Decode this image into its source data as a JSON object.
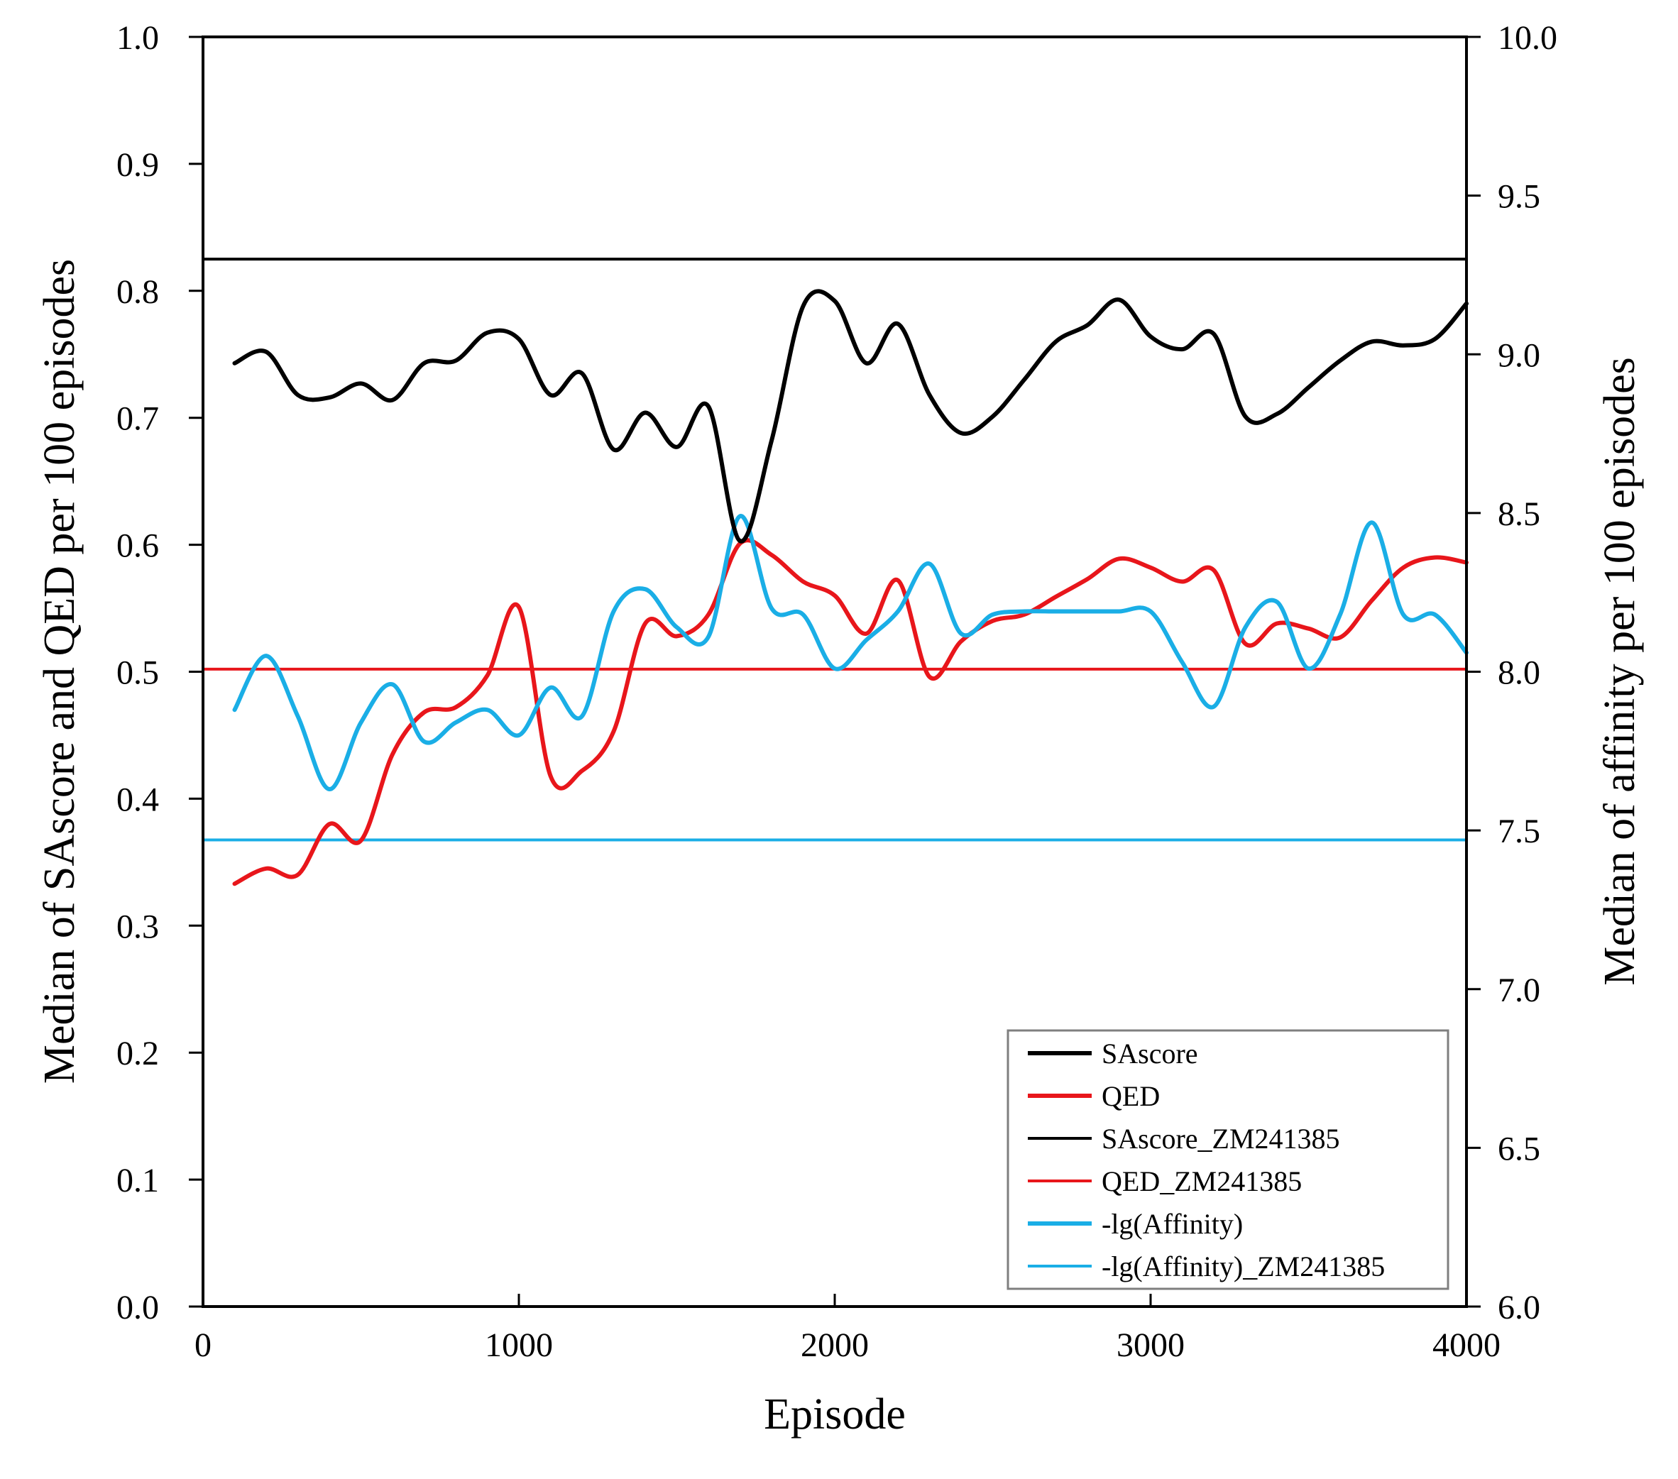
{
  "chart_data": {
    "type": "line",
    "xlabel": "Episode",
    "ylabel_left": "Median of SAscore and QED per 100 episodes",
    "ylabel_right": "Median of affinity per 100 episodes",
    "xlim": [
      0,
      4000
    ],
    "ylim_left": [
      0,
      1.0
    ],
    "ylim_right": [
      6.0,
      10.0
    ],
    "x_ticks": [
      "0",
      "1000",
      "2000",
      "3000",
      "4000"
    ],
    "y_left_ticks": [
      "0.0",
      "0.1",
      "0.2",
      "0.3",
      "0.4",
      "0.5",
      "0.6",
      "0.7",
      "0.8",
      "0.9",
      "1.0"
    ],
    "y_right_ticks": [
      "6.0",
      "6.5",
      "7.0",
      "7.5",
      "8.0",
      "8.5",
      "9.0",
      "9.5",
      "10.0"
    ],
    "grid": false,
    "legend_position": "bottom-right",
    "series": [
      {
        "name": "SAscore",
        "axis": "left",
        "color": "#000000",
        "style": "thick",
        "x": [
          100,
          200,
          300,
          400,
          500,
          600,
          700,
          800,
          900,
          1000,
          1100,
          1200,
          1300,
          1400,
          1500,
          1600,
          1700,
          1800,
          1900,
          2000,
          2100,
          2200,
          2300,
          2400,
          2500,
          2600,
          2700,
          2800,
          2900,
          3000,
          3100,
          3200,
          3300,
          3400,
          3500,
          3600,
          3700,
          3800,
          3900,
          4000
        ],
        "values": [
          0.743,
          0.752,
          0.718,
          0.716,
          0.727,
          0.714,
          0.743,
          0.745,
          0.767,
          0.762,
          0.718,
          0.735,
          0.675,
          0.704,
          0.677,
          0.709,
          0.603,
          0.682,
          0.788,
          0.792,
          0.743,
          0.774,
          0.718,
          0.688,
          0.701,
          0.73,
          0.76,
          0.773,
          0.793,
          0.764,
          0.754,
          0.766,
          0.701,
          0.703,
          0.724,
          0.745,
          0.76,
          0.757,
          0.762,
          0.79
        ]
      },
      {
        "name": "QED",
        "axis": "left",
        "color": "#e8161b",
        "style": "thick",
        "x": [
          100,
          200,
          300,
          400,
          500,
          600,
          700,
          800,
          900,
          1000,
          1100,
          1200,
          1300,
          1400,
          1500,
          1600,
          1700,
          1800,
          1900,
          2000,
          2100,
          2200,
          2300,
          2400,
          2500,
          2600,
          2700,
          2800,
          2900,
          3000,
          3100,
          3200,
          3300,
          3400,
          3500,
          3600,
          3700,
          3800,
          3900,
          4000
        ],
        "values": [
          0.333,
          0.345,
          0.34,
          0.38,
          0.367,
          0.435,
          0.468,
          0.472,
          0.497,
          0.551,
          0.418,
          0.422,
          0.453,
          0.538,
          0.528,
          0.545,
          0.601,
          0.592,
          0.571,
          0.56,
          0.53,
          0.572,
          0.496,
          0.524,
          0.54,
          0.545,
          0.559,
          0.573,
          0.589,
          0.582,
          0.571,
          0.58,
          0.522,
          0.538,
          0.534,
          0.527,
          0.556,
          0.582,
          0.59,
          0.586
        ]
      },
      {
        "name": "SAscore_ZM241385",
        "axis": "left",
        "color": "#000000",
        "style": "thin",
        "x": [
          0,
          4000
        ],
        "values": [
          0.825,
          0.825
        ]
      },
      {
        "name": "QED_ZM241385",
        "axis": "left",
        "color": "#e8161b",
        "style": "thin",
        "x": [
          0,
          4000
        ],
        "values": [
          0.502,
          0.502
        ]
      },
      {
        "name": "-lg(Affinity)",
        "axis": "right",
        "color": "#1aaee6",
        "style": "thick",
        "x": [
          100,
          200,
          300,
          400,
          500,
          600,
          700,
          800,
          900,
          1000,
          1100,
          1200,
          1300,
          1400,
          1500,
          1600,
          1700,
          1800,
          1900,
          2000,
          2100,
          2200,
          2300,
          2400,
          2500,
          2600,
          2700,
          2800,
          2900,
          3000,
          3100,
          3200,
          3300,
          3400,
          3500,
          3600,
          3700,
          3800,
          3900,
          4000
        ],
        "values": [
          7.88,
          8.05,
          7.86,
          7.63,
          7.84,
          7.96,
          7.78,
          7.84,
          7.88,
          7.8,
          7.95,
          7.86,
          8.19,
          8.26,
          8.14,
          8.11,
          8.49,
          8.2,
          8.18,
          8.01,
          8.1,
          8.19,
          8.34,
          8.12,
          8.18,
          8.19,
          8.19,
          8.19,
          8.19,
          8.19,
          8.03,
          7.89,
          8.14,
          8.22,
          8.01,
          8.18,
          8.47,
          8.18,
          8.18,
          8.06
        ]
      },
      {
        "name": "-lg(Affinity)_ZM241385",
        "axis": "right",
        "color": "#1aaee6",
        "style": "thin",
        "x": [
          0,
          4000
        ],
        "values": [
          7.47,
          7.47
        ]
      }
    ]
  }
}
